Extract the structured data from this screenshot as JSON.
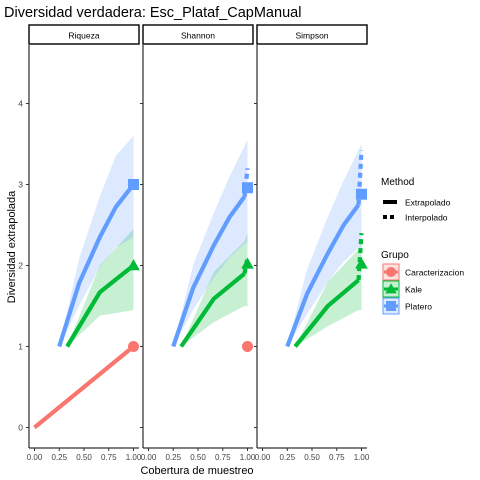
{
  "chart_data": {
    "type": "line",
    "title": "Diversidad verdadera: Esc_Plataf_CapManual",
    "xlabel": "Cobertura de muestreo",
    "ylabel": "Diversidad extrapolada",
    "xlim": [
      0.0,
      1.0
    ],
    "ylim": [
      0,
      4
    ],
    "x_ticks": [
      "0.00",
      "0.25",
      "0.50",
      "0.75",
      "1.00"
    ],
    "y_ticks": [
      "0",
      "1",
      "2",
      "3",
      "4"
    ],
    "facets": [
      "Riqueza",
      "Shannon",
      "Simpson"
    ],
    "grid": false,
    "legend_position": "right",
    "legends": {
      "method": {
        "title": "Method",
        "items": [
          "Extrapolado",
          "Interpolado"
        ]
      },
      "group": {
        "title": "Grupo",
        "items": [
          {
            "name": "Caracterizacion",
            "color": "#F8766D",
            "shape": "circle"
          },
          {
            "name": "Kale",
            "color": "#00BA38",
            "shape": "triangle"
          },
          {
            "name": "Platero",
            "color": "#619CFF",
            "shape": "square"
          }
        ]
      }
    },
    "panels": [
      {
        "facet": "Riqueza",
        "series": [
          {
            "group": "Caracterizacion",
            "interpolado": [
              [
                0.0,
                0.0
              ],
              [
                1.0,
                1.0
              ]
            ],
            "extrapolado": [],
            "band_upper": [],
            "band_lower": [],
            "reference_point": [
              1.0,
              1.0
            ]
          },
          {
            "group": "Kale",
            "interpolado": [
              [
                0.33,
                1.0
              ],
              [
                0.66,
                1.67
              ],
              [
                1.0,
                2.0
              ]
            ],
            "extrapolado": [],
            "band_upper": [
              [
                0.33,
                1.0
              ],
              [
                0.66,
                2.0
              ],
              [
                1.0,
                2.45
              ]
            ],
            "band_lower": [
              [
                0.33,
                1.0
              ],
              [
                0.66,
                1.38
              ],
              [
                1.0,
                1.45
              ]
            ],
            "reference_point": [
              1.0,
              2.0
            ]
          },
          {
            "group": "Platero",
            "interpolado": [
              [
                0.25,
                1.0
              ],
              [
                0.45,
                1.78
              ],
              [
                0.66,
                2.35
              ],
              [
                0.82,
                2.72
              ],
              [
                1.0,
                3.0
              ]
            ],
            "extrapolado": [],
            "band_upper": [
              [
                0.25,
                1.0
              ],
              [
                0.45,
                2.08
              ],
              [
                0.66,
                2.85
              ],
              [
                0.82,
                3.35
              ],
              [
                1.0,
                3.6
              ]
            ],
            "band_lower": [
              [
                0.25,
                1.0
              ],
              [
                0.45,
                1.5
              ],
              [
                0.66,
                1.98
              ],
              [
                0.82,
                2.22
              ],
              [
                1.0,
                2.35
              ]
            ],
            "reference_point": [
              1.0,
              3.0
            ]
          }
        ]
      },
      {
        "facet": "Shannon",
        "series": [
          {
            "group": "Caracterizacion",
            "interpolado": [],
            "extrapolado": [],
            "band_upper": [],
            "band_lower": [],
            "reference_point": [
              1.0,
              1.0
            ]
          },
          {
            "group": "Kale",
            "interpolado": [
              [
                0.33,
                1.0
              ],
              [
                0.66,
                1.59
              ],
              [
                0.97,
                1.9
              ]
            ],
            "extrapolado": [
              [
                0.97,
                1.9
              ],
              [
                1.0,
                2.1
              ]
            ],
            "band_upper": [
              [
                0.33,
                1.0
              ],
              [
                0.66,
                1.92
              ],
              [
                0.97,
                2.3
              ],
              [
                1.0,
                2.4
              ]
            ],
            "band_lower": [
              [
                0.33,
                1.0
              ],
              [
                0.66,
                1.3
              ],
              [
                0.97,
                1.5
              ],
              [
                1.0,
                1.5
              ]
            ],
            "reference_point": [
              1.0,
              2.02
            ]
          },
          {
            "group": "Platero",
            "interpolado": [
              [
                0.25,
                1.0
              ],
              [
                0.45,
                1.72
              ],
              [
                0.66,
                2.25
              ],
              [
                0.82,
                2.6
              ],
              [
                0.97,
                2.85
              ]
            ],
            "extrapolado": [
              [
                0.97,
                2.85
              ],
              [
                1.0,
                3.2
              ]
            ],
            "band_upper": [
              [
                0.25,
                1.0
              ],
              [
                0.45,
                2.0
              ],
              [
                0.66,
                2.65
              ],
              [
                0.82,
                3.1
              ],
              [
                1.0,
                3.55
              ]
            ],
            "band_lower": [
              [
                0.25,
                1.0
              ],
              [
                0.45,
                1.45
              ],
              [
                0.66,
                1.85
              ],
              [
                0.82,
                2.1
              ],
              [
                1.0,
                2.3
              ]
            ],
            "reference_point": [
              1.0,
              2.96
            ]
          }
        ]
      },
      {
        "facet": "Simpson",
        "series": [
          {
            "group": "Kale",
            "interpolado": [
              [
                0.33,
                1.0
              ],
              [
                0.66,
                1.5
              ],
              [
                0.97,
                1.82
              ]
            ],
            "extrapolado": [
              [
                0.97,
                1.82
              ],
              [
                1.0,
                2.4
              ]
            ],
            "band_upper": [
              [
                0.33,
                1.0
              ],
              [
                0.66,
                1.8
              ],
              [
                0.97,
                2.2
              ],
              [
                1.0,
                2.3
              ]
            ],
            "band_lower": [
              [
                0.33,
                1.0
              ],
              [
                0.66,
                1.25
              ],
              [
                0.97,
                1.45
              ],
              [
                1.0,
                1.45
              ]
            ],
            "reference_point": [
              1.0,
              2.02
            ]
          },
          {
            "group": "Platero",
            "interpolado": [
              [
                0.25,
                1.0
              ],
              [
                0.45,
                1.65
              ],
              [
                0.66,
                2.15
              ],
              [
                0.82,
                2.5
              ],
              [
                0.97,
                2.75
              ]
            ],
            "extrapolado": [
              [
                0.97,
                2.75
              ],
              [
                1.0,
                3.42
              ]
            ],
            "band_upper": [
              [
                0.25,
                1.0
              ],
              [
                0.45,
                1.95
              ],
              [
                0.66,
                2.6
              ],
              [
                0.82,
                3.05
              ],
              [
                1.0,
                3.5
              ]
            ],
            "band_lower": [
              [
                0.25,
                1.0
              ],
              [
                0.45,
                1.4
              ],
              [
                0.66,
                1.8
              ],
              [
                0.82,
                2.05
              ],
              [
                1.0,
                2.25
              ]
            ],
            "reference_point": [
              1.0,
              2.88
            ]
          }
        ]
      }
    ]
  }
}
